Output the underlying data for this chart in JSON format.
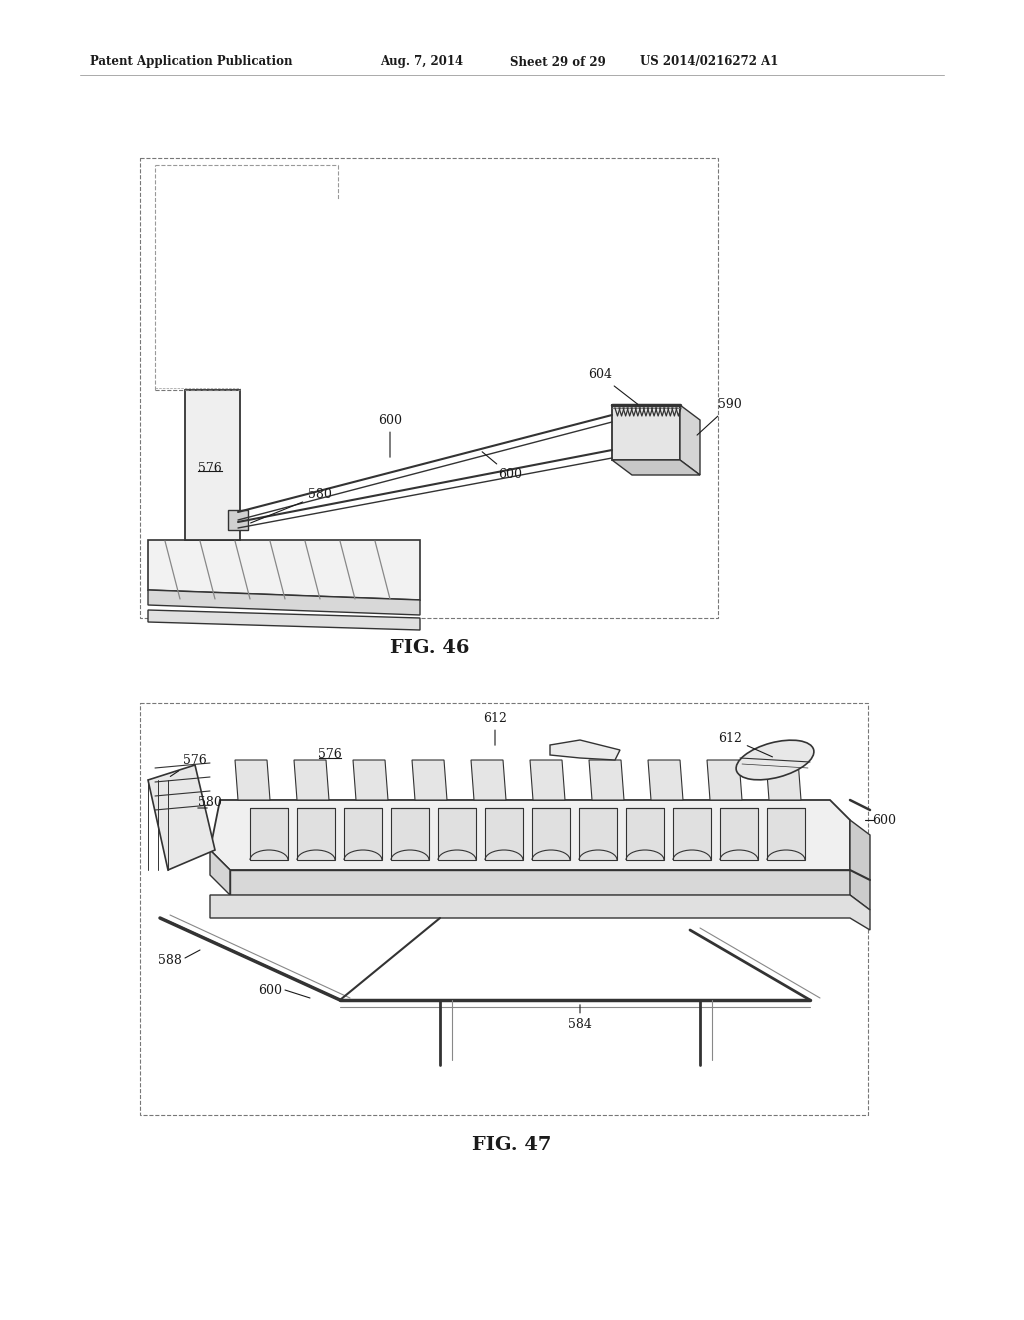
{
  "background_color": "#ffffff",
  "header_text": "Patent Application Publication",
  "header_date": "Aug. 7, 2014",
  "header_sheet": "Sheet 29 of 29",
  "header_patent": "US 2014/0216272 A1",
  "fig46_caption": "FIG. 46",
  "fig47_caption": "FIG. 47",
  "text_color": "#1a1a1a",
  "line_color": "#333333",
  "light_gray": "#e8e8e8",
  "mid_gray": "#c8c8c8",
  "dark_gray": "#555555"
}
